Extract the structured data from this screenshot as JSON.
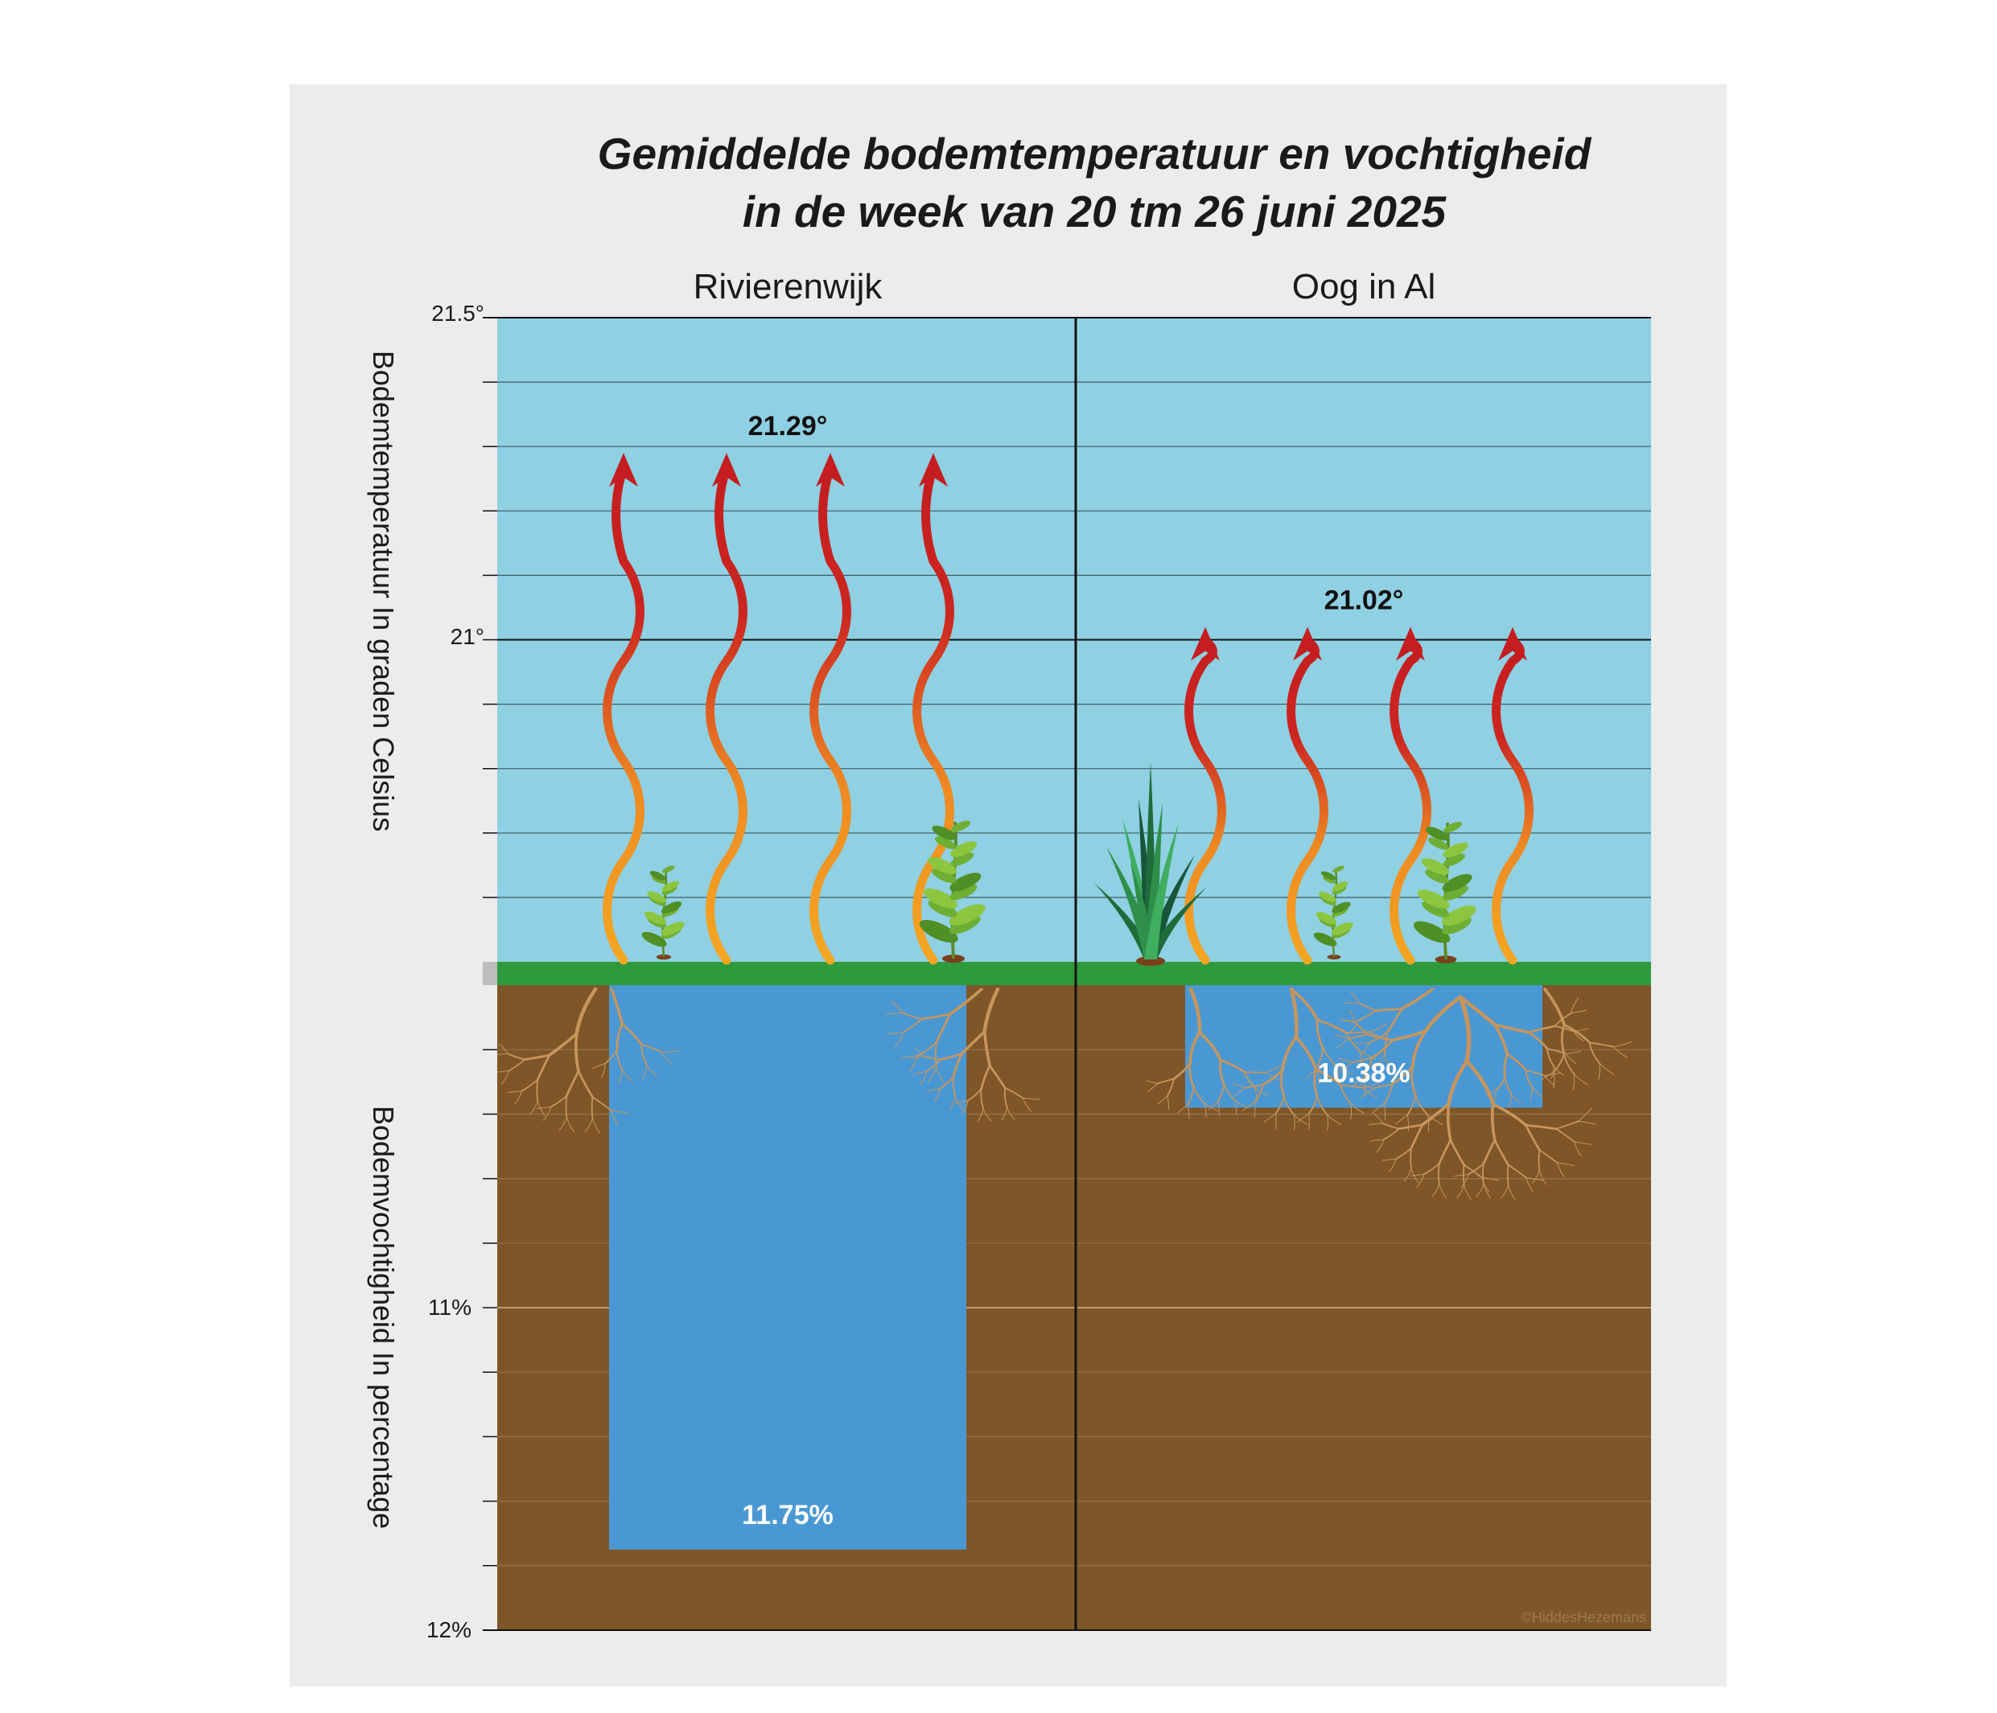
{
  "chart_data": {
    "type": "bar",
    "title": "Gemiddelde bodemtemperatuur en vochtigheid",
    "subtitle": "in de week van 20 tm 26 juni 2025",
    "categories": [
      "Rivierenwijk",
      "Oog in Al"
    ],
    "temperature": {
      "ylabel": "Bodemtemperatuur In graden Celsius",
      "values": [
        21.29,
        21.02
      ],
      "value_labels": [
        "21.29°",
        "21.02°"
      ],
      "range": [
        20.5,
        21.5
      ],
      "tick_labels": [
        "21.5°",
        "21°"
      ],
      "color": "#8fd0e3"
    },
    "moisture": {
      "ylabel": "Bodemvochtigheid In percentage",
      "values": [
        11.75,
        10.38
      ],
      "value_labels": [
        "11.75%",
        "10.38%"
      ],
      "range": [
        10.0,
        12.0
      ],
      "tick_labels": [
        "11%",
        "12%"
      ],
      "bar_color": "#4a98d3",
      "soil_color": "#7e5628"
    },
    "grid": true,
    "credit": "©HiddesHezemans"
  }
}
